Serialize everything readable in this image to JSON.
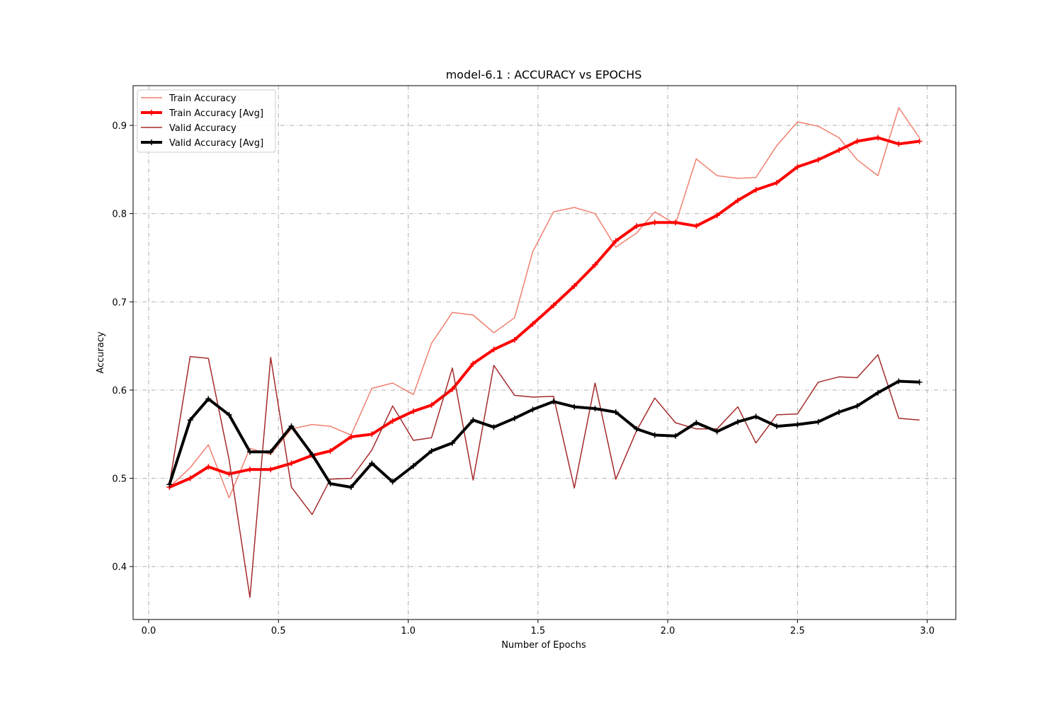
{
  "chart_data": {
    "type": "line",
    "title": "model-6.1 : ACCURACY vs EPOCHS",
    "xlabel": "Number of Epochs",
    "ylabel": "Accuracy",
    "xlim": [
      -0.06,
      3.11
    ],
    "ylim": [
      0.34,
      0.945
    ],
    "xticks": [
      0.0,
      0.5,
      1.0,
      1.5,
      2.0,
      2.5,
      3.0
    ],
    "xtick_labels": [
      "0.0",
      "0.5",
      "1.0",
      "1.5",
      "2.0",
      "2.5",
      "3.0"
    ],
    "yticks": [
      0.4,
      0.5,
      0.6,
      0.7,
      0.8,
      0.9
    ],
    "ytick_labels": [
      "0.4",
      "0.5",
      "0.6",
      "0.7",
      "0.8",
      "0.9"
    ],
    "grid": true,
    "legend_position": "top-left",
    "x": [
      0.08,
      0.16,
      0.23,
      0.31,
      0.39,
      0.47,
      0.55,
      0.63,
      0.7,
      0.78,
      0.86,
      0.94,
      1.02,
      1.09,
      1.17,
      1.25,
      1.33,
      1.41,
      1.48,
      1.56,
      1.64,
      1.72,
      1.8,
      1.88,
      1.95,
      2.03,
      2.11,
      2.19,
      2.27,
      2.34,
      2.42,
      2.5,
      2.58,
      2.66,
      2.73,
      2.81,
      2.89,
      2.97
    ],
    "series": [
      {
        "name": "Train Accuracy",
        "color": "#f08070",
        "width": 1.5,
        "markers": false,
        "values": [
          0.49,
          0.512,
          0.538,
          0.478,
          0.534,
          0.527,
          0.556,
          0.561,
          0.559,
          0.549,
          0.602,
          0.608,
          0.595,
          0.653,
          0.688,
          0.685,
          0.665,
          0.682,
          0.757,
          0.802,
          0.807,
          0.8,
          0.762,
          0.778,
          0.802,
          0.788,
          0.862,
          0.843,
          0.84,
          0.841,
          0.877,
          0.904,
          0.899,
          0.886,
          0.861,
          0.843,
          0.92,
          0.886
        ]
      },
      {
        "name": "Train Accuracy [Avg]",
        "color": "#ff0000",
        "width": 4,
        "markers": true,
        "values": [
          0.49,
          0.5,
          0.513,
          0.505,
          0.51,
          0.51,
          0.517,
          0.526,
          0.531,
          0.547,
          0.55,
          0.565,
          0.576,
          0.583,
          0.601,
          0.63,
          0.646,
          0.657,
          0.675,
          0.696,
          0.718,
          0.742,
          0.769,
          0.786,
          0.79,
          0.79,
          0.786,
          0.798,
          0.815,
          0.827,
          0.835,
          0.853,
          0.861,
          0.872,
          0.882,
          0.886,
          0.879,
          0.882
        ]
      },
      {
        "name": "Valid Accuracy",
        "color": "#a52a2a",
        "width": 1.5,
        "markers": false,
        "values": [
          0.493,
          0.638,
          0.636,
          0.521,
          0.365,
          0.637,
          0.49,
          0.459,
          0.499,
          0.5,
          0.532,
          0.582,
          0.543,
          0.546,
          0.625,
          0.498,
          0.628,
          0.594,
          0.592,
          0.593,
          0.489,
          0.608,
          0.499,
          0.554,
          0.591,
          0.563,
          0.556,
          0.556,
          0.581,
          0.54,
          0.572,
          0.573,
          0.609,
          0.615,
          0.614,
          0.64,
          0.568,
          0.566
        ]
      },
      {
        "name": "Valid Accuracy [Avg]",
        "color": "#000000",
        "width": 4,
        "markers": true,
        "values": [
          0.493,
          0.566,
          0.59,
          0.572,
          0.53,
          0.53,
          0.559,
          0.527,
          0.494,
          0.49,
          0.517,
          0.496,
          0.514,
          0.531,
          0.54,
          0.566,
          0.558,
          0.568,
          0.578,
          0.587,
          0.581,
          0.579,
          0.575,
          0.556,
          0.549,
          0.548,
          0.563,
          0.553,
          0.564,
          0.57,
          0.559,
          0.561,
          0.564,
          0.575,
          0.582,
          0.597,
          0.61,
          0.609
        ]
      }
    ]
  }
}
